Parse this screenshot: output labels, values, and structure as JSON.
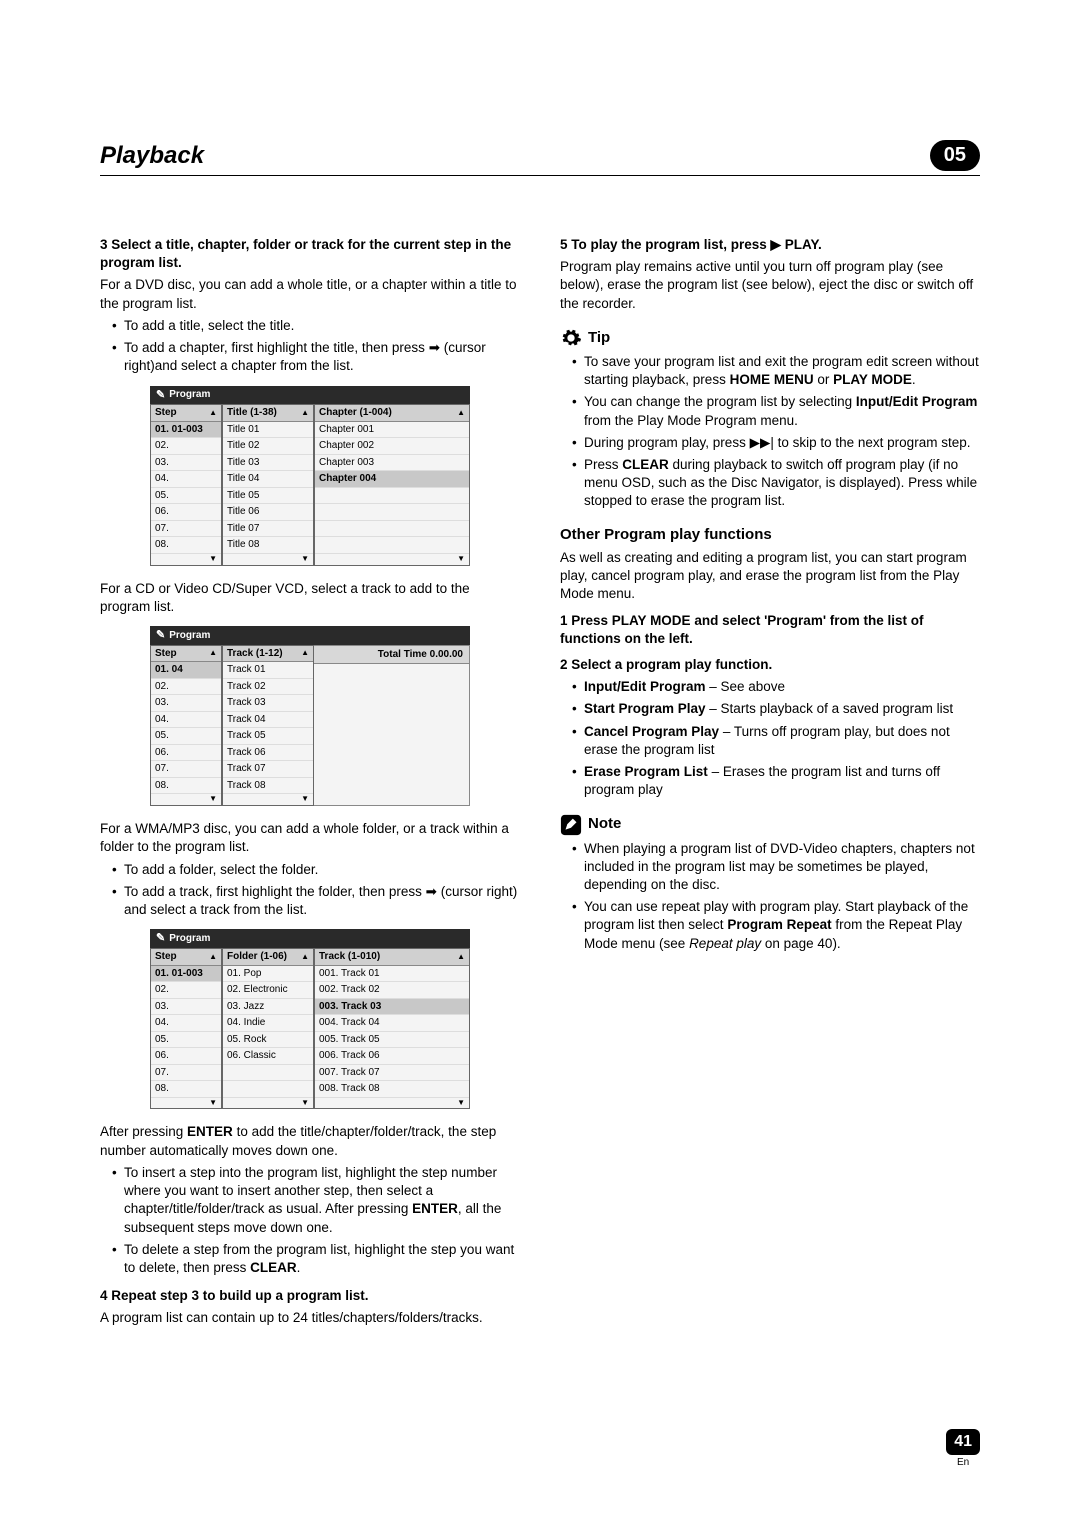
{
  "header": {
    "title": "Playback",
    "chapter": "05"
  },
  "footer": {
    "page": "41",
    "lang": "En"
  },
  "left": {
    "step3_head": "3   Select a title, chapter, folder or track for the current step in the program list.",
    "step3_p1": "For a DVD disc, you can add a whole title, or a chapter within a title to the program list.",
    "step3_b1": "To add a title, select the title.",
    "step3_b2a": "To add a chapter, first highlight the title, then press ",
    "step3_b2b": " (cursor right)and select a chapter from the list.",
    "arrow_right": "➡",
    "box1": {
      "label": "Program",
      "colA_head": "Step",
      "colA": [
        "01. 01-003",
        "02.",
        "03.",
        "04.",
        "05.",
        "06.",
        "07.",
        "08."
      ],
      "colB_head": "Title (1-38)",
      "colB": [
        "Title 01",
        "Title 02",
        "Title 03",
        "Title 04",
        "Title 05",
        "Title 06",
        "Title 07",
        "Title 08"
      ],
      "colC_head": "Chapter (1-004)",
      "colC": [
        "Chapter 001",
        "Chapter 002",
        "Chapter 003",
        "Chapter 004"
      ]
    },
    "p_cd": "For a CD or Video CD/Super VCD, select a track to add to the program list.",
    "box2": {
      "label": "Program",
      "colA_head": "Step",
      "colA": [
        "01. 04",
        "02.",
        "03.",
        "04.",
        "05.",
        "06.",
        "07.",
        "08."
      ],
      "colB_head": "Track (1-12)",
      "colB": [
        "Track 01",
        "Track 02",
        "Track 03",
        "Track 04",
        "Track 05",
        "Track 06",
        "Track 07",
        "Track 08"
      ],
      "total_label": "Total Time 0.00.00"
    },
    "p_wma": "For a WMA/MP3 disc, you can add a whole folder, or a track within a folder to the program list.",
    "wma_b1": "To add a folder, select the folder.",
    "wma_b2a": "To add a track, first highlight the folder, then press ",
    "wma_b2b": " (cursor right) and select a track from the list.",
    "box3": {
      "label": "Program",
      "colA_head": "Step",
      "colA": [
        "01. 01-003",
        "02.",
        "03.",
        "04.",
        "05.",
        "06.",
        "07.",
        "08."
      ],
      "colB_head": "Folder (1-06)",
      "colB": [
        "01. Pop",
        "02. Electronic",
        "03. Jazz",
        "04. Indie",
        "05. Rock",
        "06. Classic"
      ],
      "colC_head": "Track (1-010)",
      "colC": [
        "001. Track 01",
        "002. Track 02",
        "003. Track 03",
        "004. Track 04",
        "005. Track 05",
        "006. Track 06",
        "007. Track 07",
        "008. Track 08"
      ]
    },
    "p_enter1": "After pressing ",
    "enter": "ENTER",
    "p_enter2": " to add the title/chapter/folder/track, the step number automatically moves down one.",
    "ins_b1a": "To insert a step into the program list, highlight the step number where you want to insert another step, then select a chapter/title/folder/track as usual. After pressing ",
    "ins_b1b": ", all the subsequent steps move down one.",
    "del_b1a": "To delete a step from the program list, highlight the step you want to delete, then press ",
    "clear": "CLEAR",
    "del_b1b": ".",
    "step4_head": "4   Repeat step 3 to build up a program list.",
    "step4_p": "A program list can contain up to 24 titles/chapters/folders/tracks."
  },
  "right": {
    "step5_head": "5   To play the program list, press ▶ PLAY.",
    "step5_p": "Program play remains active until you turn off program play (see below), erase the program list (see below), eject the disc or switch off the recorder.",
    "tip_label": "Tip",
    "tip_b1a": "To save your program list and exit the program edit screen without starting playback, press ",
    "home_menu": "HOME MENU",
    "or": " or ",
    "play_mode": "PLAY MODE",
    "dot": ".",
    "tip_b2a": "You can change the program list by selecting ",
    "input_edit": "Input/Edit Program",
    "tip_b2b": " from the Play Mode Program menu.",
    "tip_b3a": "During program play, press ",
    "skip": "▶▶|",
    "tip_b3b": " to skip to the next program step.",
    "tip_b4a": "Press ",
    "tip_b4b": " during playback to switch off program play (if no menu OSD, such as the Disc Navigator, is displayed). Press while stopped to erase the program list.",
    "other_head": "Other Program play functions",
    "other_p": "As well as creating and editing a program list, you can start program play, cancel program play, and erase the program list from the Play Mode menu.",
    "o_step1": "1   Press PLAY MODE and select 'Program' from the list of functions on the left.",
    "o_step2": "2   Select a program play function.",
    "o_b1a": "Input/Edit Program",
    "o_b1b": " – See above",
    "o_b2a": "Start Program Play",
    "o_b2b": " – Starts playback of a saved program list",
    "o_b3a": "Cancel Program Play",
    "o_b3b": " – Turns off program play, but does not erase the program list",
    "o_b4a": "Erase Program List",
    "o_b4b": " – Erases the program list and turns off program play",
    "note_label": "Note",
    "note_b1": "When playing a program list of DVD-Video chapters, chapters not included in the program list may be sometimes be played, depending on the disc.",
    "note_b2a": "You can use repeat play with program play. Start playback of the program list then select ",
    "prog_repeat": "Program Repeat",
    "note_b2b": " from the Repeat Play Mode menu (see ",
    "note_b2c": "Repeat play",
    "note_b2d": " on page 40)."
  }
}
